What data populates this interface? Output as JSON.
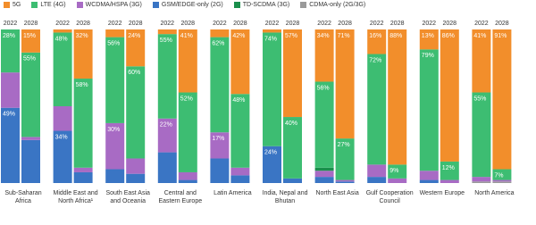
{
  "chart_data": {
    "type": "stacked-bar",
    "categories": [
      "Sub-Saharan Africa",
      "Middle East and North Africa¹",
      "South East Asia and Oceania",
      "Central and Eastern Europe",
      "Latin America",
      "India, Nepal and Bhutan",
      "North East Asia",
      "Gulf Cooperation Council",
      "Western Europe",
      "North America"
    ],
    "years": [
      "2022",
      "2028"
    ],
    "ylim": [
      0,
      100
    ],
    "series": [
      {
        "name": "5G",
        "color": "#f28e2b",
        "values": [
          [
            0,
            15
          ],
          [
            2,
            32
          ],
          [
            5,
            24
          ],
          [
            3,
            41
          ],
          [
            5,
            42
          ],
          [
            2,
            57
          ],
          [
            34,
            71
          ],
          [
            16,
            88
          ],
          [
            13,
            86
          ],
          [
            41,
            91
          ]
        ],
        "value_labels": [
          [
            null,
            "15%"
          ],
          [
            null,
            "32%"
          ],
          [
            null,
            "24%"
          ],
          [
            null,
            "41%"
          ],
          [
            null,
            "42%"
          ],
          [
            null,
            "57%"
          ],
          [
            "34%",
            "71%"
          ],
          [
            "16%",
            "88%"
          ],
          [
            "13%",
            "86%"
          ],
          [
            "41%",
            "91%"
          ]
        ]
      },
      {
        "name": "LTE (4G)",
        "color": "#3dbd72",
        "values": [
          [
            28,
            55
          ],
          [
            48,
            58
          ],
          [
            56,
            60
          ],
          [
            55,
            52
          ],
          [
            62,
            48
          ],
          [
            74,
            40
          ],
          [
            56,
            27
          ],
          [
            72,
            9
          ],
          [
            79,
            12
          ],
          [
            55,
            7
          ]
        ],
        "value_labels": [
          [
            "28%",
            "55%"
          ],
          [
            "48%",
            "58%"
          ],
          [
            "56%",
            "60%"
          ],
          [
            "55%",
            "52%"
          ],
          [
            "62%",
            "48%"
          ],
          [
            "74%",
            "40%"
          ],
          [
            "56%",
            "27%"
          ],
          [
            "72%",
            "9%"
          ],
          [
            "79%",
            "12%"
          ],
          [
            "55%",
            "7%"
          ]
        ]
      },
      {
        "name": "WCDMA/HSPA (3G)",
        "color": "#a86bc4",
        "values": [
          [
            23,
            2
          ],
          [
            16,
            3
          ],
          [
            30,
            10
          ],
          [
            22,
            5
          ],
          [
            17,
            5
          ],
          [
            0,
            0
          ],
          [
            4,
            1
          ],
          [
            8,
            3
          ],
          [
            6,
            2
          ],
          [
            3,
            1
          ]
        ],
        "value_labels": [
          [
            null,
            null
          ],
          [
            null,
            null
          ],
          [
            "30%",
            null
          ],
          [
            "22%",
            null
          ],
          [
            "17%",
            null
          ],
          [
            null,
            null
          ],
          [
            null,
            null
          ],
          [
            null,
            null
          ],
          [
            null,
            null
          ],
          [
            null,
            null
          ]
        ]
      },
      {
        "name": "GSM/EDGE-only (2G)",
        "color": "#3a75c4",
        "values": [
          [
            49,
            28
          ],
          [
            34,
            7
          ],
          [
            9,
            6
          ],
          [
            20,
            2
          ],
          [
            16,
            5
          ],
          [
            24,
            3
          ],
          [
            4,
            1
          ],
          [
            4,
            0
          ],
          [
            2,
            0
          ],
          [
            0,
            0
          ]
        ],
        "value_labels": [
          [
            "49%",
            null
          ],
          [
            "34%",
            null
          ],
          [
            null,
            null
          ],
          [
            null,
            null
          ],
          [
            null,
            null
          ],
          [
            "24%",
            null
          ],
          [
            null,
            null
          ],
          [
            null,
            null
          ],
          [
            null,
            null
          ],
          [
            null,
            null
          ]
        ]
      },
      {
        "name": "TD-SCDMA (3G)",
        "color": "#1a8f4c",
        "values": [
          [
            0,
            0
          ],
          [
            0,
            0
          ],
          [
            0,
            0
          ],
          [
            0,
            0
          ],
          [
            0,
            0
          ],
          [
            0,
            0
          ],
          [
            2,
            0
          ],
          [
            0,
            0
          ],
          [
            0,
            0
          ],
          [
            0,
            0
          ]
        ]
      },
      {
        "name": "CDMA-only (2G/3G)",
        "color": "#9a9a9a",
        "values": [
          [
            0,
            0
          ],
          [
            0,
            0
          ],
          [
            0,
            0
          ],
          [
            0,
            0
          ],
          [
            0,
            0
          ],
          [
            0,
            0
          ],
          [
            0,
            0
          ],
          [
            0,
            0
          ],
          [
            0,
            0
          ],
          [
            1,
            1
          ]
        ]
      }
    ]
  }
}
